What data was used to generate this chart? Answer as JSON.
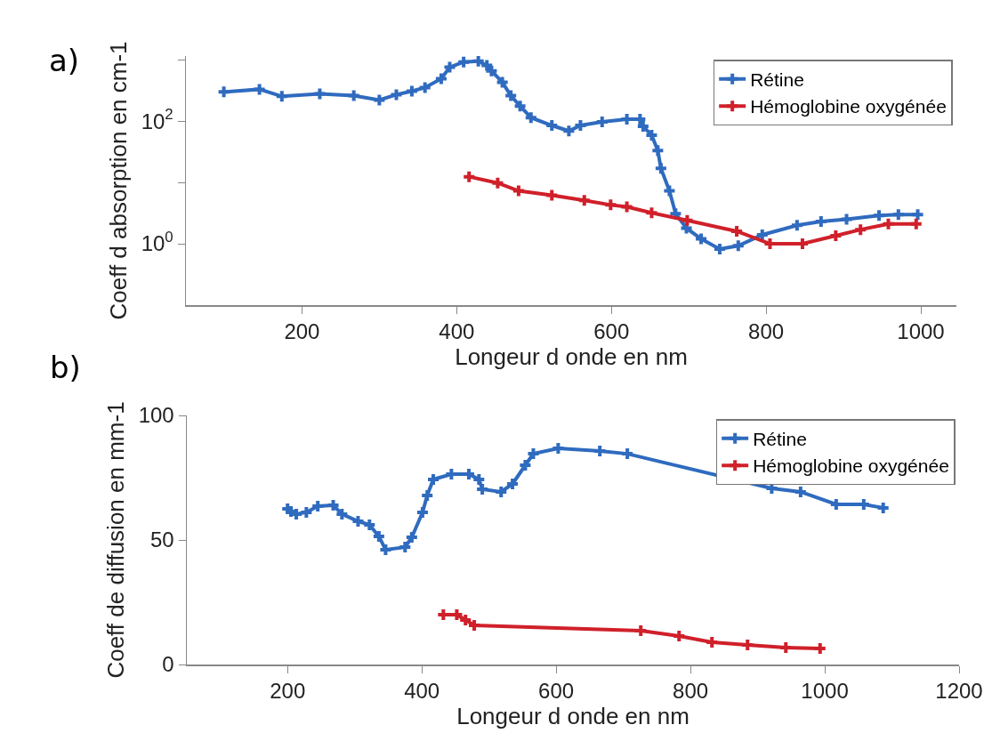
{
  "chart_data": [
    {
      "type": "line",
      "xlabel": "Longeur d onde en nm",
      "ylabel": "Coeff d absorption en cm-1",
      "annotations": [
        "a)"
      ],
      "log": "y",
      "grid": false,
      "legend": "top right",
      "marker": "cross",
      "line_style": "solid",
      "xlim": [
        50,
        1046
      ],
      "xticks": [
        200,
        400,
        600,
        800,
        1000
      ],
      "ylim": [
        0.1,
        1150
      ],
      "yticks": [
        {
          "value": 1,
          "label": "10$^{0}$"
        },
        {
          "value": 10,
          "label": null
        },
        {
          "value": 100,
          "label": "10$^{2}$"
        },
        {
          "value": 1000,
          "label": null
        }
      ],
      "series": [
        {
          "name": "Rétine",
          "color": "#2f6bbf",
          "x": [
            99,
            145,
            174,
            223,
            267,
            300,
            322,
            342,
            359,
            380,
            391,
            409,
            428,
            439,
            445,
            459,
            470,
            482,
            496,
            523,
            545,
            560,
            588,
            620,
            637,
            641,
            652,
            660,
            664,
            675,
            683,
            697,
            716,
            740,
            764,
            795,
            840,
            871,
            904,
            946,
            971,
            996
          ],
          "values": [
            299,
            330,
            253,
            279,
            261,
            221,
            270,
            308,
            352,
            490,
            755,
            920,
            950,
            810,
            660,
            430,
            260,
            176,
            114,
            85,
            69,
            85,
            97,
            107,
            107,
            82,
            59,
            33,
            17,
            7.3,
            3.1,
            1.8,
            1.2,
            0.82,
            0.93,
            1.4,
            2.0,
            2.3,
            2.5,
            2.9,
            3.0,
            3.0
          ]
        },
        {
          "name": "Hémoglobine oxygénée",
          "color": "#d0202a",
          "x": [
            416,
            453,
            480,
            523,
            565,
            599,
            620,
            652,
            698,
            762,
            805,
            847,
            890,
            922,
            958,
            994
          ],
          "values": [
            12.4,
            9.8,
            7.3,
            6.2,
            5.1,
            4.3,
            4.0,
            3.2,
            2.4,
            1.6,
            1.0,
            1.0,
            1.35,
            1.7,
            2.1,
            2.1
          ]
        }
      ]
    },
    {
      "type": "line",
      "xlabel": "Longeur d onde en nm",
      "ylabel": "Coeff de diffusion en mm-1",
      "annotations": [
        "b)"
      ],
      "grid": false,
      "legend": "top right",
      "marker": "cross",
      "line_style": "solid",
      "xlim": [
        50,
        1200
      ],
      "xticks": [
        200,
        400,
        600,
        800,
        1000,
        1200
      ],
      "ylim": [
        0,
        100
      ],
      "yticks": [
        0,
        50,
        100
      ],
      "series": [
        {
          "name": "Rétine",
          "color": "#2f6bbf",
          "x": [
            200,
            205,
            213,
            228,
            245,
            268,
            281,
            305,
            322,
            336,
            346,
            375,
            385,
            401,
            408,
            417,
            444,
            470,
            485,
            490,
            518,
            535,
            554,
            566,
            603,
            665,
            706,
            921,
            964,
            1017,
            1058,
            1087
          ],
          "values": [
            62.5,
            61.4,
            60.4,
            61.1,
            63.6,
            63.9,
            60.4,
            57.5,
            56.1,
            51.4,
            46.1,
            47.1,
            51.1,
            61.1,
            67.9,
            74.3,
            76.4,
            76.4,
            74.3,
            70.4,
            69.3,
            72.5,
            80,
            84.6,
            86.8,
            85.7,
            84.6,
            70.7,
            69.3,
            64.3,
            64.3,
            62.9
          ]
        },
        {
          "name": "Hémoglobine oxygénée",
          "color": "#d0202a",
          "x": [
            432,
            452,
            465,
            478,
            726,
            783,
            832,
            885,
            942,
            993
          ],
          "values": [
            20.0,
            20.0,
            17.9,
            15.7,
            13.6,
            11.4,
            8.9,
            7.9,
            6.8,
            6.4
          ]
        }
      ]
    }
  ]
}
